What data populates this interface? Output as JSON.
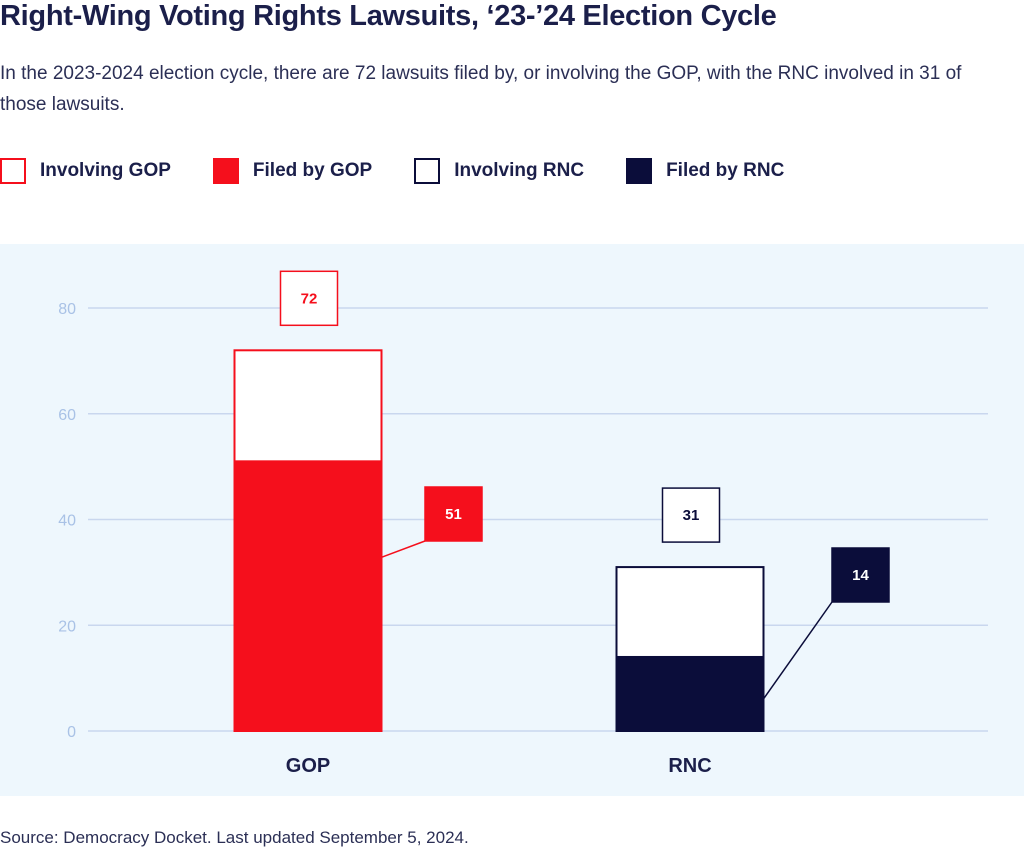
{
  "title": "Right-Wing Voting Rights Lawsuits, ‘23-’24 Election Cycle",
  "subtitle": "In the 2023-2024 election cycle, there are 72 lawsuits filed by, or involving the GOP, with the RNC involved in 31 of those lawsuits.",
  "legend": [
    {
      "label": "Involving GOP",
      "fill": "#ffffff",
      "stroke": "#f50f1c"
    },
    {
      "label": "Filed by GOP",
      "fill": "#f50f1c",
      "stroke": "#f50f1c"
    },
    {
      "label": "Involving RNC",
      "fill": "#ffffff",
      "stroke": "#0b0d3a"
    },
    {
      "label": "Filed by RNC",
      "fill": "#0b0d3a",
      "stroke": "#0b0d3a"
    }
  ],
  "source": "Source: Democracy Docket. Last updated September 5, 2024.",
  "colors": {
    "gop": "#f50f1c",
    "rnc": "#0b0d3a",
    "grid": "#c9d7ee",
    "tick": "#a9c2e6",
    "background": "#eef7fd"
  },
  "chart_data": {
    "type": "bar",
    "categories": [
      "GOP",
      "RNC"
    ],
    "series": [
      {
        "name": "Involving GOP",
        "values": [
          72,
          null
        ]
      },
      {
        "name": "Filed by GOP",
        "values": [
          51,
          null
        ]
      },
      {
        "name": "Involving RNC",
        "values": [
          null,
          31
        ]
      },
      {
        "name": "Filed by RNC",
        "values": [
          null,
          14
        ]
      }
    ],
    "bars": [
      {
        "category": "GOP",
        "total": 72,
        "filed": 51,
        "total_label": "72",
        "filed_label": "51"
      },
      {
        "category": "RNC",
        "total": 31,
        "filed": 14,
        "total_label": "31",
        "filed_label": "14"
      }
    ],
    "yticks": [
      0,
      20,
      40,
      60,
      80
    ],
    "ylim": [
      0,
      80
    ],
    "grid": true,
    "legend_position": "top-left",
    "xlabel": "",
    "ylabel": ""
  }
}
